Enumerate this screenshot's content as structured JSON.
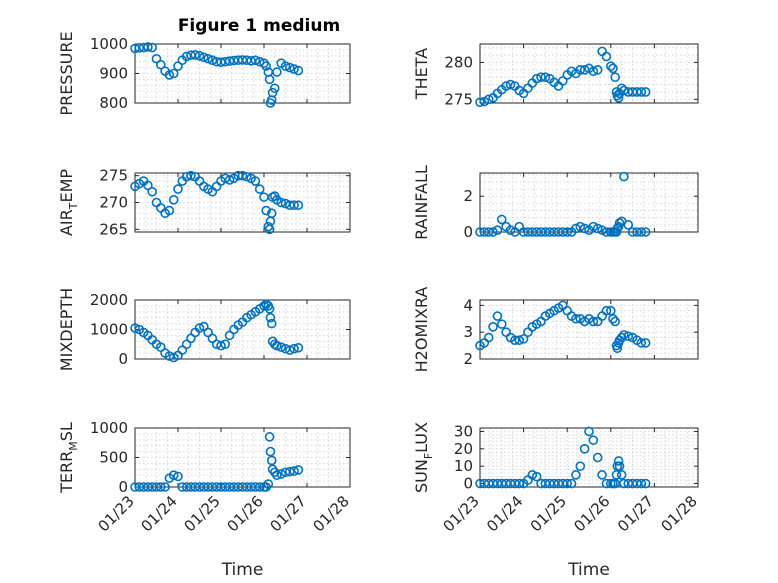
{
  "figure": {
    "title": "Figure 1 medium",
    "marker_color": "#0072BD"
  },
  "chart_data": [
    {
      "type": "scatter",
      "ylabel": "PRESSURE",
      "ylabel_sub": "",
      "xlim": [
        "01/23",
        "01/28"
      ],
      "ylim": [
        800,
        1000
      ],
      "yticks": [
        800,
        900,
        1000
      ],
      "grid": true,
      "x": [
        0,
        0.1,
        0.2,
        0.3,
        0.4,
        0.5,
        0.6,
        0.7,
        0.8,
        0.9,
        1.0,
        1.1,
        1.2,
        1.3,
        1.4,
        1.5,
        1.6,
        1.7,
        1.8,
        1.9,
        2.0,
        2.1,
        2.2,
        2.3,
        2.4,
        2.5,
        2.6,
        2.7,
        2.8,
        2.9,
        3.0,
        3.05,
        3.1,
        3.13,
        3.15,
        3.18,
        3.2,
        3.25,
        3.3,
        3.4,
        3.5,
        3.6,
        3.7,
        3.8
      ],
      "y": [
        985,
        987,
        988,
        990,
        988,
        950,
        930,
        908,
        895,
        900,
        925,
        945,
        958,
        962,
        963,
        960,
        955,
        950,
        945,
        940,
        938,
        940,
        942,
        944,
        945,
        946,
        945,
        943,
        945,
        940,
        935,
        925,
        905,
        880,
        800,
        810,
        835,
        850,
        905,
        935,
        925,
        920,
        915,
        910
      ]
    },
    {
      "type": "scatter",
      "ylabel": "THETA",
      "ylabel_sub": "",
      "xlim": [
        "01/23",
        "01/28"
      ],
      "ylim": [
        274.5,
        282.5
      ],
      "yticks": [
        275,
        280
      ],
      "grid": true,
      "x": [
        0,
        0.1,
        0.2,
        0.3,
        0.4,
        0.5,
        0.6,
        0.7,
        0.8,
        0.9,
        1.0,
        1.1,
        1.2,
        1.3,
        1.4,
        1.5,
        1.6,
        1.7,
        1.8,
        1.9,
        2.0,
        2.1,
        2.2,
        2.3,
        2.4,
        2.5,
        2.6,
        2.7,
        2.8,
        2.9,
        3.0,
        3.05,
        3.1,
        3.13,
        3.15,
        3.18,
        3.2,
        3.25,
        3.3,
        3.4,
        3.5,
        3.6,
        3.7,
        3.8
      ],
      "y": [
        274.6,
        274.7,
        275.0,
        275.2,
        275.8,
        276.3,
        276.8,
        277.0,
        276.8,
        276.2,
        275.8,
        276.5,
        277.2,
        277.8,
        278.0,
        278.0,
        277.8,
        277.3,
        276.8,
        277.5,
        278.3,
        278.8,
        278.5,
        279.0,
        279.0,
        279.2,
        278.8,
        279.0,
        281.5,
        280.8,
        279.5,
        279.2,
        278.0,
        276.0,
        275.5,
        275.2,
        275.8,
        276.5,
        276.2,
        276.0,
        276.0,
        276.0,
        276.0,
        276.0
      ]
    },
    {
      "type": "scatter",
      "ylabel": "AIR",
      "ylabel_sub": "T",
      "ylabel_suffix": "EMP",
      "xlim": [
        "01/23",
        "01/28"
      ],
      "ylim": [
        264.5,
        275.5
      ],
      "yticks": [
        265,
        270,
        275
      ],
      "grid": true,
      "x": [
        0,
        0.1,
        0.2,
        0.3,
        0.4,
        0.5,
        0.6,
        0.7,
        0.8,
        0.9,
        1.0,
        1.1,
        1.2,
        1.3,
        1.4,
        1.5,
        1.6,
        1.7,
        1.8,
        1.9,
        2.0,
        2.1,
        2.2,
        2.3,
        2.4,
        2.5,
        2.6,
        2.7,
        2.8,
        2.9,
        3.0,
        3.05,
        3.1,
        3.13,
        3.15,
        3.18,
        3.2,
        3.25,
        3.3,
        3.4,
        3.5,
        3.6,
        3.7,
        3.8
      ],
      "y": [
        273.0,
        273.5,
        274.0,
        273.2,
        272.0,
        270.0,
        269.0,
        268.0,
        268.5,
        270.5,
        272.5,
        274.0,
        274.8,
        275.0,
        274.8,
        274.0,
        273.0,
        272.5,
        272.0,
        273.0,
        274.0,
        274.5,
        274.2,
        274.5,
        275.0,
        275.0,
        274.8,
        274.5,
        274.0,
        272.5,
        271.0,
        268.5,
        265.5,
        265.0,
        266.5,
        268.0,
        271.0,
        271.2,
        270.5,
        270.0,
        269.8,
        269.5,
        269.5,
        269.5
      ]
    },
    {
      "type": "scatter",
      "ylabel": "RAINFALL",
      "ylabel_sub": "",
      "xlim": [
        "01/23",
        "01/28"
      ],
      "ylim": [
        0,
        3.3
      ],
      "yticks": [
        0,
        2
      ],
      "grid": true,
      "x": [
        0,
        0.1,
        0.2,
        0.3,
        0.4,
        0.5,
        0.6,
        0.7,
        0.8,
        0.9,
        1.0,
        1.1,
        1.2,
        1.3,
        1.4,
        1.5,
        1.6,
        1.7,
        1.8,
        1.9,
        2.0,
        2.1,
        2.2,
        2.3,
        2.4,
        2.5,
        2.6,
        2.7,
        2.8,
        2.9,
        3.0,
        3.05,
        3.1,
        3.13,
        3.15,
        3.18,
        3.2,
        3.25,
        3.3,
        3.4,
        3.5,
        3.6,
        3.7,
        3.8
      ],
      "y": [
        0,
        0,
        0,
        0,
        0.1,
        0.7,
        0.3,
        0.1,
        0,
        0.3,
        0,
        0,
        0,
        0,
        0,
        0,
        0,
        0,
        0,
        0,
        0,
        0,
        0.2,
        0.3,
        0.2,
        0.1,
        0.3,
        0.2,
        0.1,
        0,
        0,
        0,
        0,
        0,
        0.2,
        0.3,
        0.5,
        0.6,
        3.1,
        0.4,
        0,
        0,
        0,
        0
      ]
    },
    {
      "type": "scatter",
      "ylabel": "MIXDEPTH",
      "ylabel_sub": "",
      "xlim": [
        "01/23",
        "01/28"
      ],
      "ylim": [
        0,
        2000
      ],
      "yticks": [
        0,
        1000,
        2000
      ],
      "grid": true,
      "x": [
        0,
        0.1,
        0.2,
        0.3,
        0.4,
        0.5,
        0.6,
        0.7,
        0.8,
        0.9,
        1.0,
        1.1,
        1.2,
        1.3,
        1.4,
        1.5,
        1.6,
        1.7,
        1.8,
        1.9,
        2.0,
        2.1,
        2.2,
        2.3,
        2.4,
        2.5,
        2.6,
        2.7,
        2.8,
        2.9,
        3.0,
        3.05,
        3.1,
        3.13,
        3.15,
        3.18,
        3.2,
        3.25,
        3.3,
        3.4,
        3.5,
        3.6,
        3.7,
        3.8
      ],
      "y": [
        1050,
        1000,
        900,
        800,
        650,
        500,
        400,
        200,
        100,
        50,
        120,
        300,
        500,
        700,
        900,
        1050,
        1100,
        900,
        700,
        500,
        450,
        500,
        800,
        1000,
        1150,
        1250,
        1400,
        1500,
        1600,
        1700,
        1800,
        1850,
        1800,
        1700,
        1400,
        1200,
        600,
        500,
        450,
        400,
        350,
        300,
        350,
        380
      ]
    },
    {
      "type": "scatter",
      "ylabel": "H2OMIXRA",
      "ylabel_sub": "",
      "xlim": [
        "01/23",
        "01/28"
      ],
      "ylim": [
        2,
        4.2
      ],
      "yticks": [
        2,
        3,
        4
      ],
      "grid": true,
      "x": [
        0,
        0.1,
        0.2,
        0.3,
        0.4,
        0.5,
        0.6,
        0.7,
        0.8,
        0.9,
        1.0,
        1.1,
        1.2,
        1.3,
        1.4,
        1.5,
        1.6,
        1.7,
        1.8,
        1.9,
        2.0,
        2.1,
        2.2,
        2.3,
        2.4,
        2.5,
        2.6,
        2.7,
        2.8,
        2.9,
        3.0,
        3.05,
        3.1,
        3.13,
        3.15,
        3.18,
        3.2,
        3.25,
        3.3,
        3.4,
        3.5,
        3.6,
        3.7,
        3.8
      ],
      "y": [
        2.5,
        2.6,
        2.8,
        3.2,
        3.6,
        3.3,
        3.0,
        2.8,
        2.7,
        2.7,
        2.75,
        3.0,
        3.2,
        3.3,
        3.4,
        3.6,
        3.7,
        3.8,
        3.9,
        4.0,
        3.8,
        3.6,
        3.5,
        3.5,
        3.4,
        3.5,
        3.4,
        3.4,
        3.6,
        3.8,
        3.8,
        3.5,
        3.4,
        2.5,
        2.4,
        2.6,
        2.7,
        2.8,
        2.9,
        2.85,
        2.8,
        2.7,
        2.6,
        2.6
      ]
    },
    {
      "type": "scatter",
      "ylabel": "TERR",
      "ylabel_sub": "M",
      "ylabel_suffix": "SL",
      "xlim": [
        "01/23",
        "01/28"
      ],
      "ylim": [
        0,
        1000
      ],
      "yticks": [
        0,
        500,
        1000
      ],
      "grid": true,
      "xticks": [
        "01/23",
        "01/24",
        "01/25",
        "01/26",
        "01/27",
        "01/28"
      ],
      "xlabel": "Time",
      "x": [
        0,
        0.1,
        0.2,
        0.3,
        0.4,
        0.5,
        0.6,
        0.7,
        0.8,
        0.9,
        1.0,
        1.1,
        1.2,
        1.3,
        1.4,
        1.5,
        1.6,
        1.7,
        1.8,
        1.9,
        2.0,
        2.1,
        2.2,
        2.3,
        2.4,
        2.5,
        2.6,
        2.7,
        2.8,
        2.9,
        3.0,
        3.05,
        3.1,
        3.13,
        3.15,
        3.18,
        3.2,
        3.25,
        3.3,
        3.4,
        3.5,
        3.6,
        3.7,
        3.8
      ],
      "y": [
        0,
        0,
        0,
        0,
        0,
        0,
        0,
        0,
        150,
        200,
        180,
        0,
        0,
        0,
        0,
        0,
        0,
        0,
        0,
        0,
        0,
        0,
        0,
        0,
        0,
        0,
        0,
        0,
        0,
        0,
        0,
        0,
        50,
        850,
        600,
        450,
        300,
        250,
        200,
        220,
        250,
        260,
        270,
        290
      ]
    },
    {
      "type": "scatter",
      "ylabel": "SUN",
      "ylabel_sub": "F",
      "ylabel_suffix": "LUX",
      "xlim": [
        "01/23",
        "01/28"
      ],
      "ylim": [
        -2,
        32
      ],
      "yticks": [
        0,
        10,
        20,
        30
      ],
      "grid": true,
      "xticks": [
        "01/23",
        "01/24",
        "01/25",
        "01/26",
        "01/27",
        "01/28"
      ],
      "xlabel": "Time",
      "x": [
        0,
        0.1,
        0.2,
        0.3,
        0.4,
        0.5,
        0.6,
        0.7,
        0.8,
        0.9,
        1.0,
        1.1,
        1.2,
        1.3,
        1.4,
        1.5,
        1.6,
        1.7,
        1.8,
        1.9,
        2.0,
        2.1,
        2.2,
        2.3,
        2.4,
        2.5,
        2.6,
        2.7,
        2.8,
        2.9,
        3.0,
        3.05,
        3.1,
        3.13,
        3.15,
        3.18,
        3.2,
        3.25,
        3.3,
        3.4,
        3.5,
        3.6,
        3.7,
        3.8
      ],
      "y": [
        0,
        0,
        0,
        0,
        0,
        0,
        0,
        0,
        0,
        0,
        0,
        2,
        5,
        4,
        0,
        0,
        0,
        0,
        0,
        0,
        0,
        0,
        5,
        10,
        20,
        30,
        25,
        15,
        5,
        0,
        0,
        0,
        0,
        5,
        10,
        13,
        10,
        5,
        0,
        0,
        0,
        0,
        0,
        0
      ]
    }
  ]
}
